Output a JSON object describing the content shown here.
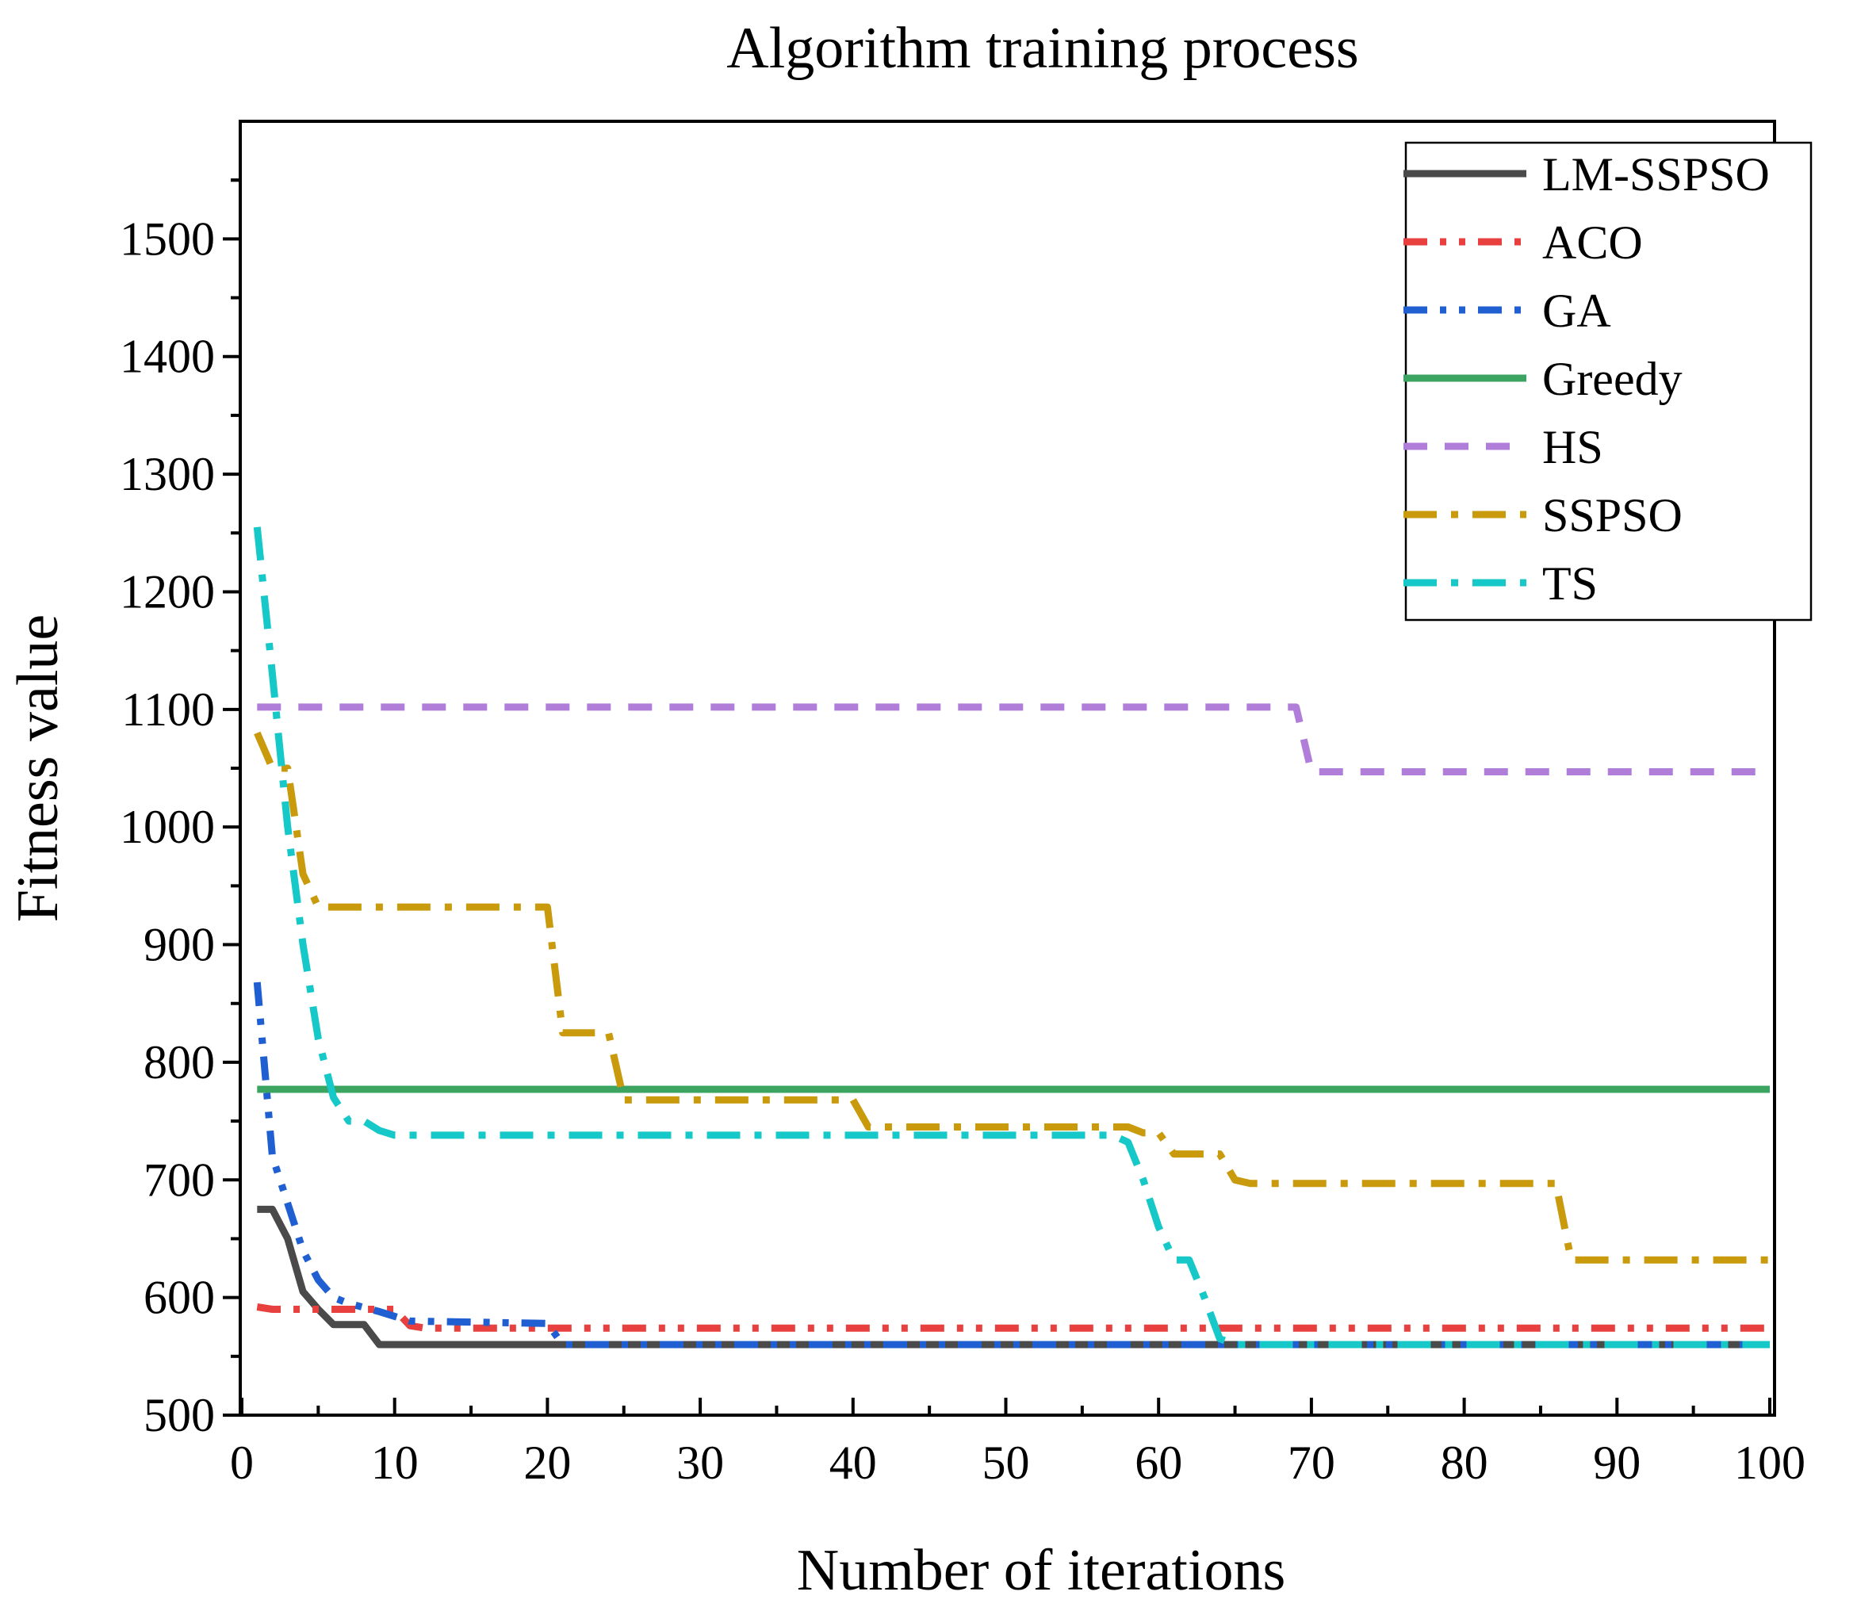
{
  "chart_data": {
    "type": "line",
    "title": "Algorithm training process",
    "xlabel": "Number of iterations",
    "ylabel": "Fitness value",
    "xlim": [
      0,
      100
    ],
    "ylim": [
      500,
      1600
    ],
    "xticks": [
      0,
      10,
      20,
      30,
      40,
      50,
      60,
      70,
      80,
      90,
      100
    ],
    "yticks": [
      500,
      600,
      700,
      800,
      900,
      1000,
      1100,
      1200,
      1300,
      1400,
      1500
    ],
    "grid": false,
    "legend_position": "top-right",
    "series": [
      {
        "name": "LM-SSPSO",
        "color": "#4a4a4a",
        "dash": "solid",
        "points": [
          [
            1,
            675
          ],
          [
            2,
            675
          ],
          [
            3,
            650
          ],
          [
            4,
            605
          ],
          [
            5,
            590
          ],
          [
            6,
            577
          ],
          [
            8,
            577
          ],
          [
            9,
            560
          ],
          [
            100,
            560
          ]
        ]
      },
      {
        "name": "ACO",
        "color": "#e8403f",
        "dash": "dashdotdot",
        "points": [
          [
            1,
            592
          ],
          [
            2,
            590
          ],
          [
            10,
            590
          ],
          [
            11,
            576
          ],
          [
            12,
            574
          ],
          [
            100,
            574
          ]
        ]
      },
      {
        "name": "GA",
        "color": "#1f5fd1",
        "dash": "dashdotdot",
        "points": [
          [
            1,
            868
          ],
          [
            2,
            720
          ],
          [
            3,
            680
          ],
          [
            4,
            640
          ],
          [
            5,
            615
          ],
          [
            6,
            600
          ],
          [
            7,
            595
          ],
          [
            9,
            588
          ],
          [
            10,
            584
          ],
          [
            11,
            580
          ],
          [
            20,
            578
          ],
          [
            21,
            560
          ],
          [
            100,
            560
          ]
        ]
      },
      {
        "name": "Greedy",
        "color": "#3aa460",
        "dash": "solid",
        "points": [
          [
            1,
            777
          ],
          [
            100,
            777
          ]
        ]
      },
      {
        "name": "HS",
        "color": "#b07ed8",
        "dash": "dash",
        "points": [
          [
            1,
            1102
          ],
          [
            69,
            1102
          ],
          [
            70,
            1047
          ],
          [
            100,
            1047
          ]
        ]
      },
      {
        "name": "SSPSO",
        "color": "#c89a0c",
        "dash": "dashdot",
        "points": [
          [
            1,
            1080
          ],
          [
            2,
            1050
          ],
          [
            3,
            1050
          ],
          [
            4,
            960
          ],
          [
            5,
            932
          ],
          [
            20,
            932
          ],
          [
            21,
            825
          ],
          [
            24,
            825
          ],
          [
            25,
            768
          ],
          [
            40,
            768
          ],
          [
            41,
            745
          ],
          [
            58,
            745
          ],
          [
            59,
            740
          ],
          [
            60,
            740
          ],
          [
            61,
            722
          ],
          [
            64,
            722
          ],
          [
            65,
            700
          ],
          [
            66,
            697
          ],
          [
            86,
            697
          ],
          [
            87,
            632
          ],
          [
            100,
            632
          ]
        ]
      },
      {
        "name": "TS",
        "color": "#16c8c8",
        "dash": "dashdot",
        "points": [
          [
            1,
            1255
          ],
          [
            2,
            1130
          ],
          [
            3,
            1000
          ],
          [
            4,
            900
          ],
          [
            5,
            820
          ],
          [
            6,
            770
          ],
          [
            7,
            750
          ],
          [
            8,
            750
          ],
          [
            9,
            742
          ],
          [
            10,
            738
          ],
          [
            57,
            738
          ],
          [
            58,
            732
          ],
          [
            59,
            700
          ],
          [
            60,
            660
          ],
          [
            61,
            632
          ],
          [
            62,
            632
          ],
          [
            63,
            600
          ],
          [
            64,
            565
          ],
          [
            65,
            560
          ],
          [
            100,
            560
          ]
        ]
      }
    ]
  }
}
